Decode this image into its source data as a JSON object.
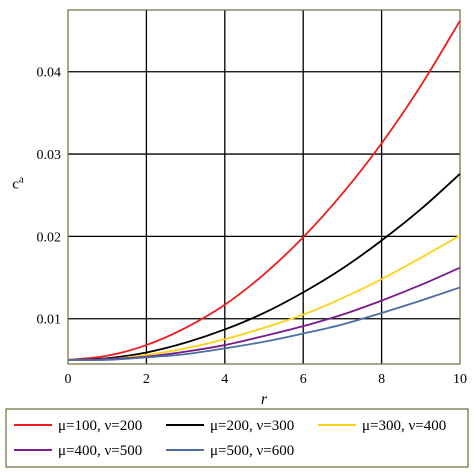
{
  "chart_data": {
    "type": "line",
    "title": "",
    "xlabel": "r",
    "ylabel": "c",
    "ylabel_superscript": "a",
    "xlim": [
      0,
      10
    ],
    "ylim": [
      0.0045,
      0.0475
    ],
    "x_ticks": [
      0,
      2,
      4,
      6,
      8,
      10
    ],
    "x_tick_labels": [
      "0",
      "2",
      "4",
      "6",
      "8",
      "10"
    ],
    "y_ticks": [
      0.01,
      0.02,
      0.03,
      0.04
    ],
    "y_tick_labels": [
      "0.01",
      "0.02",
      "0.03",
      "0.04"
    ],
    "grid": true,
    "legend_position": "bottom",
    "x": [
      0,
      1,
      2,
      3,
      4,
      5,
      6,
      7,
      8,
      9,
      10
    ],
    "series": [
      {
        "name": "μ=100, ν=200",
        "color": "#ee1c1c",
        "values": [
          0.005,
          0.0055,
          0.0068,
          0.0089,
          0.0117,
          0.0154,
          0.0199,
          0.0252,
          0.0313,
          0.0383,
          0.0462
        ]
      },
      {
        "name": "μ=200, ν=300",
        "color": "#000000",
        "values": [
          0.005,
          0.0052,
          0.0059,
          0.0071,
          0.0087,
          0.0107,
          0.0132,
          0.0161,
          0.0195,
          0.0233,
          0.0276
        ]
      },
      {
        "name": "μ=300, ν=400",
        "color": "#ffd21a",
        "values": [
          0.005,
          0.0051,
          0.0056,
          0.0064,
          0.0075,
          0.0089,
          0.0105,
          0.0125,
          0.0148,
          0.0174,
          0.0201
        ]
      },
      {
        "name": "μ=400, ν=500",
        "color": "#7a1c8c",
        "values": [
          0.005,
          0.0051,
          0.0054,
          0.006,
          0.0068,
          0.0079,
          0.0091,
          0.0105,
          0.0122,
          0.0141,
          0.0162
        ]
      },
      {
        "name": "μ=500, ν=600",
        "color": "#4a6fa0",
        "values": [
          0.005,
          0.005,
          0.0053,
          0.0057,
          0.0064,
          0.0072,
          0.0082,
          0.0093,
          0.0107,
          0.0122,
          0.0138
        ]
      }
    ]
  }
}
